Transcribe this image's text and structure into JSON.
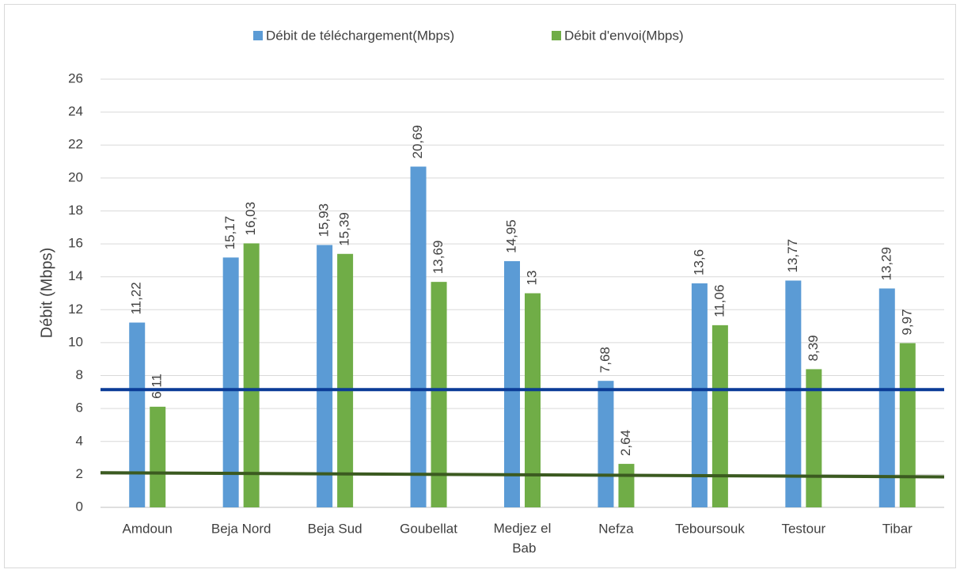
{
  "chart_data": {
    "type": "bar",
    "ylabel": "Débit (Mbps)",
    "categories": [
      "Amdoun",
      "Beja Nord",
      "Beja Sud",
      "Goubellat",
      "Medjez el Bab",
      "Nefza",
      "Teboursouk",
      "Testour",
      "Tibar"
    ],
    "series": [
      {
        "name": "Débit de téléchargement(Mbps)",
        "color": "#5b9bd5",
        "values": [
          11.22,
          15.17,
          15.93,
          20.69,
          14.95,
          7.68,
          13.6,
          13.77,
          13.29
        ],
        "value_labels": [
          "11,22",
          "15,17",
          "15,93",
          "20,69",
          "14,95",
          "7,68",
          "13,6",
          "13,77",
          "13,29"
        ]
      },
      {
        "name": "Débit d'envoi(Mbps)",
        "color": "#70ad47",
        "values": [
          6.11,
          16.03,
          15.39,
          13.69,
          13,
          2.64,
          11.06,
          8.39,
          9.97
        ],
        "value_labels": [
          "6,11",
          "16,03",
          "15,39",
          "13,69",
          "13",
          "2,64",
          "11,06",
          "8,39",
          "9,97"
        ]
      }
    ],
    "reference_lines": [
      {
        "color": "#0b3c97",
        "values": [
          7.15,
          7.15
        ]
      },
      {
        "color": "#3b5a20",
        "values": [
          2.1,
          1.85
        ]
      }
    ],
    "ylim": [
      0,
      26
    ],
    "yticks": [
      0,
      2,
      4,
      6,
      8,
      10,
      12,
      14,
      16,
      18,
      20,
      22,
      24,
      26
    ],
    "grid": true,
    "legend": "top"
  }
}
